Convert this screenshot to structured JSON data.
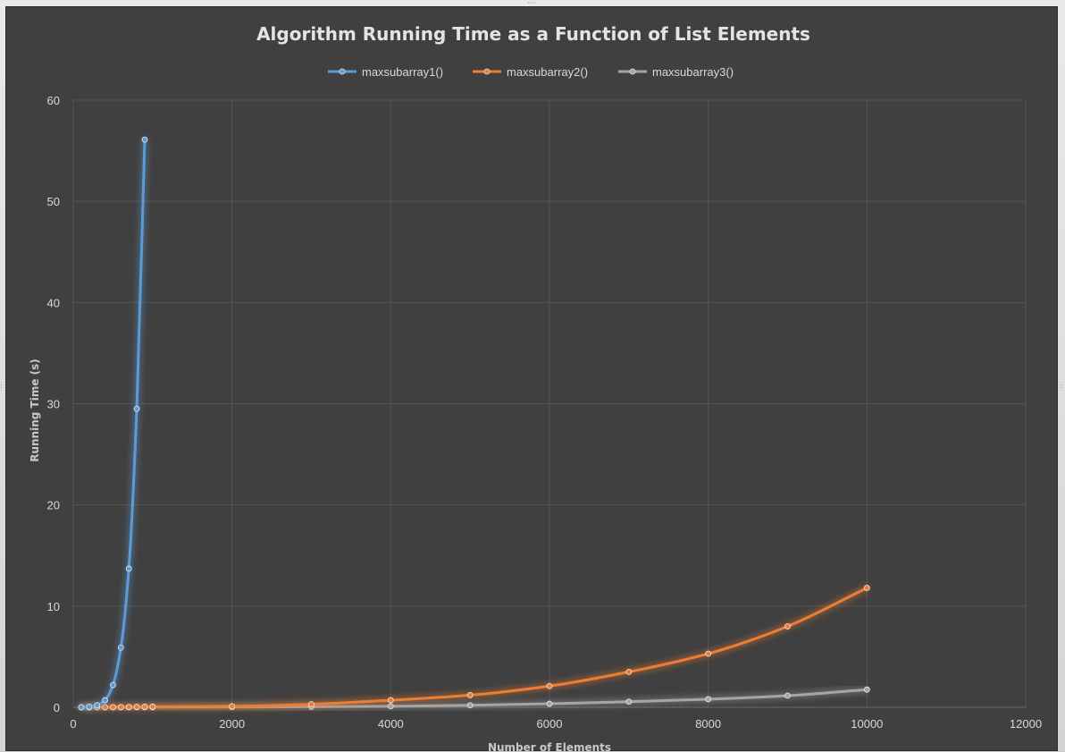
{
  "chart_data": {
    "type": "scatter",
    "title": "Algorithm Running Time as a Function of List Elements",
    "xlabel": "Number of Elements",
    "ylabel": "Running Time (s)",
    "xlim": [
      0,
      12000
    ],
    "ylim": [
      0,
      60
    ],
    "x_ticks": [
      0,
      2000,
      4000,
      6000,
      8000,
      10000,
      12000
    ],
    "y_ticks": [
      0,
      10,
      20,
      30,
      40,
      50,
      60
    ],
    "grid": true,
    "legend_position": "top",
    "background": "#404040",
    "series": [
      {
        "name": "maxsubarray1()",
        "color": "#5b9bd5",
        "x": [
          100,
          200,
          300,
          400,
          500,
          600,
          700,
          800,
          900
        ],
        "y": [
          0.01,
          0.05,
          0.2,
          0.7,
          2.2,
          5.9,
          13.7,
          29.5,
          56.1
        ]
      },
      {
        "name": "maxsubarray2()",
        "color": "#ed7d31",
        "x": [
          100,
          200,
          300,
          400,
          500,
          600,
          700,
          800,
          900,
          1000,
          2000,
          3000,
          4000,
          5000,
          6000,
          7000,
          8000,
          9000,
          10000
        ],
        "y": [
          0.0,
          0.0,
          0.01,
          0.01,
          0.02,
          0.02,
          0.03,
          0.04,
          0.05,
          0.06,
          0.1,
          0.3,
          0.7,
          1.2,
          2.1,
          3.5,
          5.3,
          8.0,
          11.8
        ]
      },
      {
        "name": "maxsubarray3()",
        "color": "#a5a5a5",
        "x": [
          100,
          200,
          300,
          400,
          500,
          600,
          700,
          800,
          900,
          1000,
          2000,
          3000,
          4000,
          5000,
          6000,
          7000,
          8000,
          9000,
          10000
        ],
        "y": [
          0.0,
          0.0,
          0.0,
          0.0,
          0.0,
          0.0,
          0.0,
          0.01,
          0.01,
          0.01,
          0.03,
          0.05,
          0.1,
          0.2,
          0.35,
          0.55,
          0.8,
          1.15,
          1.75
        ]
      }
    ]
  }
}
